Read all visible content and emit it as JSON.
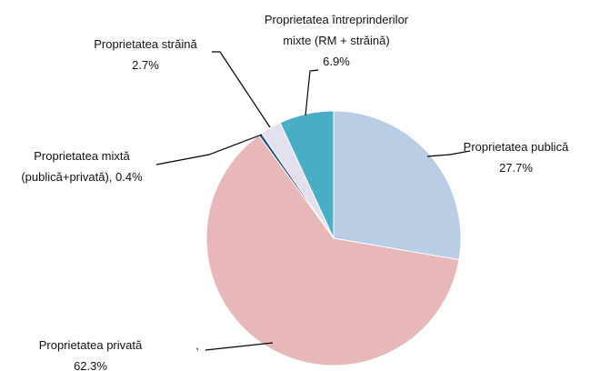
{
  "chart_data": {
    "type": "pie",
    "categories": [
      "Proprietatea publică",
      "Proprietatea privată",
      "Proprietatea mixtă (publică+privată),",
      "Proprietatea străină",
      "Proprietatea întreprinderilor mixte (RM + străină)"
    ],
    "values": [
      27.7,
      62.3,
      0.4,
      2.7,
      6.9
    ],
    "value_labels": [
      "27.7%",
      "62.3%",
      "0.4%",
      "2.7%",
      "6.9%"
    ],
    "colors": [
      "#b9cde5",
      "#e6b9b8",
      "#1f497d",
      "#e4dfec",
      "#4bacc6"
    ],
    "annotation": ","
  }
}
